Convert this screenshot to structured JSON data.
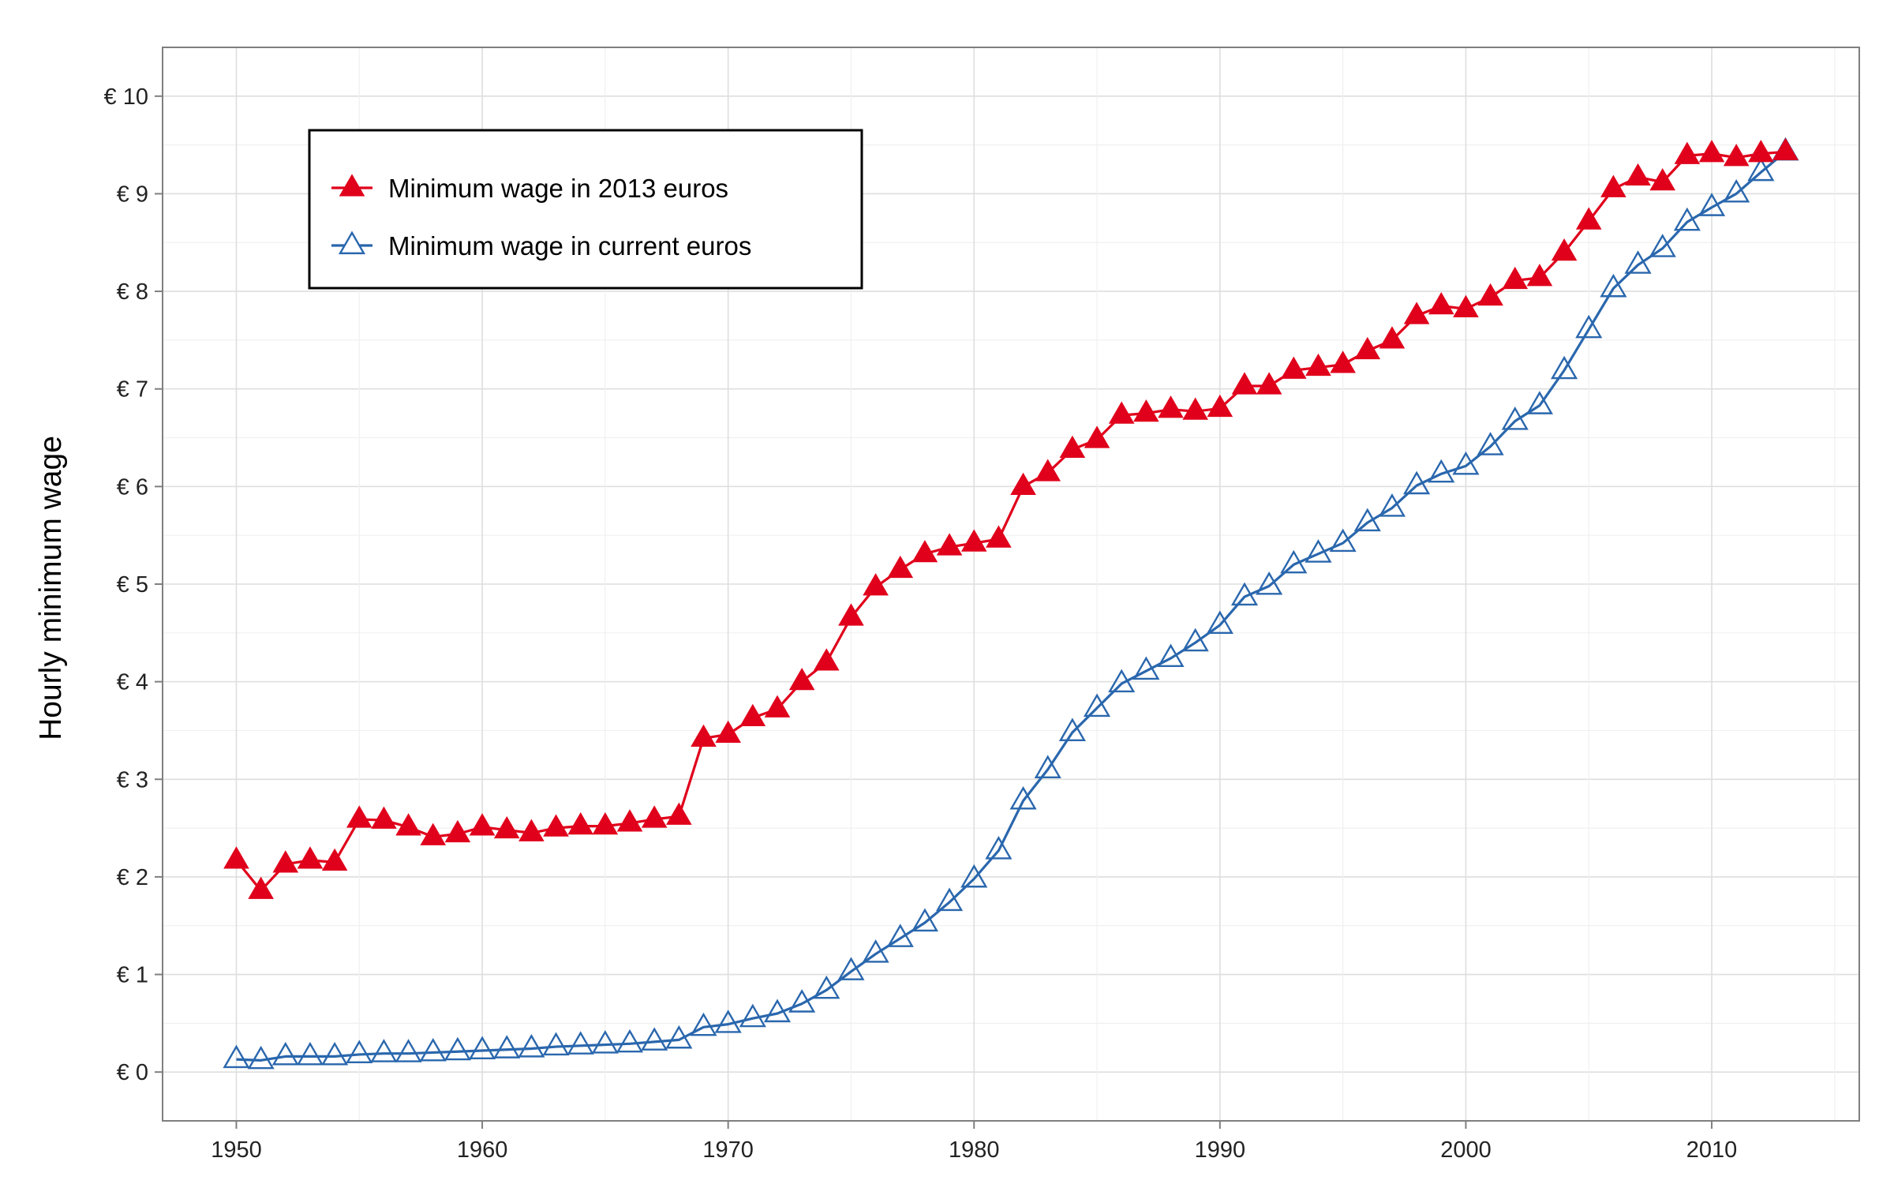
{
  "chart_data": {
    "type": "line",
    "title": "",
    "xlabel": "",
    "ylabel": "Hourly minimum wage",
    "xlim": [
      1947,
      2016
    ],
    "ylim": [
      -0.5,
      10.5
    ],
    "x_ticks": [
      1950,
      1960,
      1970,
      1980,
      1990,
      2000,
      2010
    ],
    "y_ticks": [
      0,
      1,
      2,
      3,
      4,
      5,
      6,
      7,
      8,
      9,
      10
    ],
    "y_tick_labels": [
      "€ 0",
      "€ 1",
      "€ 2",
      "€ 3",
      "€ 4",
      "€ 5",
      "€ 6",
      "€ 7",
      "€ 8",
      "€ 9",
      "€ 10"
    ],
    "grid": true,
    "legend_position": "top-left",
    "x": [
      1950,
      1951,
      1952,
      1953,
      1954,
      1955,
      1956,
      1957,
      1958,
      1959,
      1960,
      1961,
      1962,
      1963,
      1964,
      1965,
      1966,
      1967,
      1968,
      1969,
      1970,
      1971,
      1972,
      1973,
      1974,
      1975,
      1976,
      1977,
      1978,
      1979,
      1980,
      1981,
      1982,
      1983,
      1984,
      1985,
      1986,
      1987,
      1988,
      1989,
      1990,
      1991,
      1992,
      1993,
      1994,
      1995,
      1996,
      1997,
      1998,
      1999,
      2000,
      2001,
      2002,
      2003,
      2004,
      2005,
      2006,
      2007,
      2008,
      2009,
      2010,
      2011,
      2012,
      2013
    ],
    "series": [
      {
        "name": "Minimum wage in 2013 euros",
        "color": "#e0001b",
        "marker": "filled-triangle",
        "values": [
          2.17,
          1.86,
          2.13,
          2.17,
          2.15,
          2.59,
          2.58,
          2.51,
          2.41,
          2.44,
          2.51,
          2.48,
          2.45,
          2.5,
          2.52,
          2.52,
          2.55,
          2.59,
          2.62,
          3.42,
          3.46,
          3.63,
          3.72,
          4.0,
          4.2,
          4.66,
          4.97,
          5.15,
          5.31,
          5.38,
          5.42,
          5.46,
          6.0,
          6.14,
          6.38,
          6.48,
          6.73,
          6.75,
          6.79,
          6.77,
          6.8,
          7.03,
          7.03,
          7.19,
          7.22,
          7.25,
          7.39,
          7.5,
          7.75,
          7.85,
          7.82,
          7.94,
          8.11,
          8.14,
          8.4,
          8.72,
          9.05,
          9.17,
          9.12,
          9.39,
          9.41,
          9.37,
          9.41,
          9.43
        ]
      },
      {
        "name": "Minimum wage in current euros",
        "color": "#2a67ad",
        "marker": "hollow-triangle",
        "values": [
          0.13,
          0.12,
          0.16,
          0.16,
          0.16,
          0.18,
          0.19,
          0.19,
          0.2,
          0.21,
          0.22,
          0.23,
          0.24,
          0.26,
          0.27,
          0.28,
          0.29,
          0.31,
          0.33,
          0.46,
          0.49,
          0.55,
          0.6,
          0.7,
          0.84,
          1.03,
          1.21,
          1.37,
          1.53,
          1.74,
          1.98,
          2.27,
          2.78,
          3.1,
          3.48,
          3.73,
          3.98,
          4.11,
          4.24,
          4.4,
          4.58,
          4.87,
          4.98,
          5.2,
          5.31,
          5.42,
          5.63,
          5.78,
          6.01,
          6.13,
          6.21,
          6.41,
          6.67,
          6.83,
          7.19,
          7.61,
          8.03,
          8.27,
          8.44,
          8.71,
          8.86,
          9.0,
          9.22,
          9.43
        ]
      }
    ]
  }
}
